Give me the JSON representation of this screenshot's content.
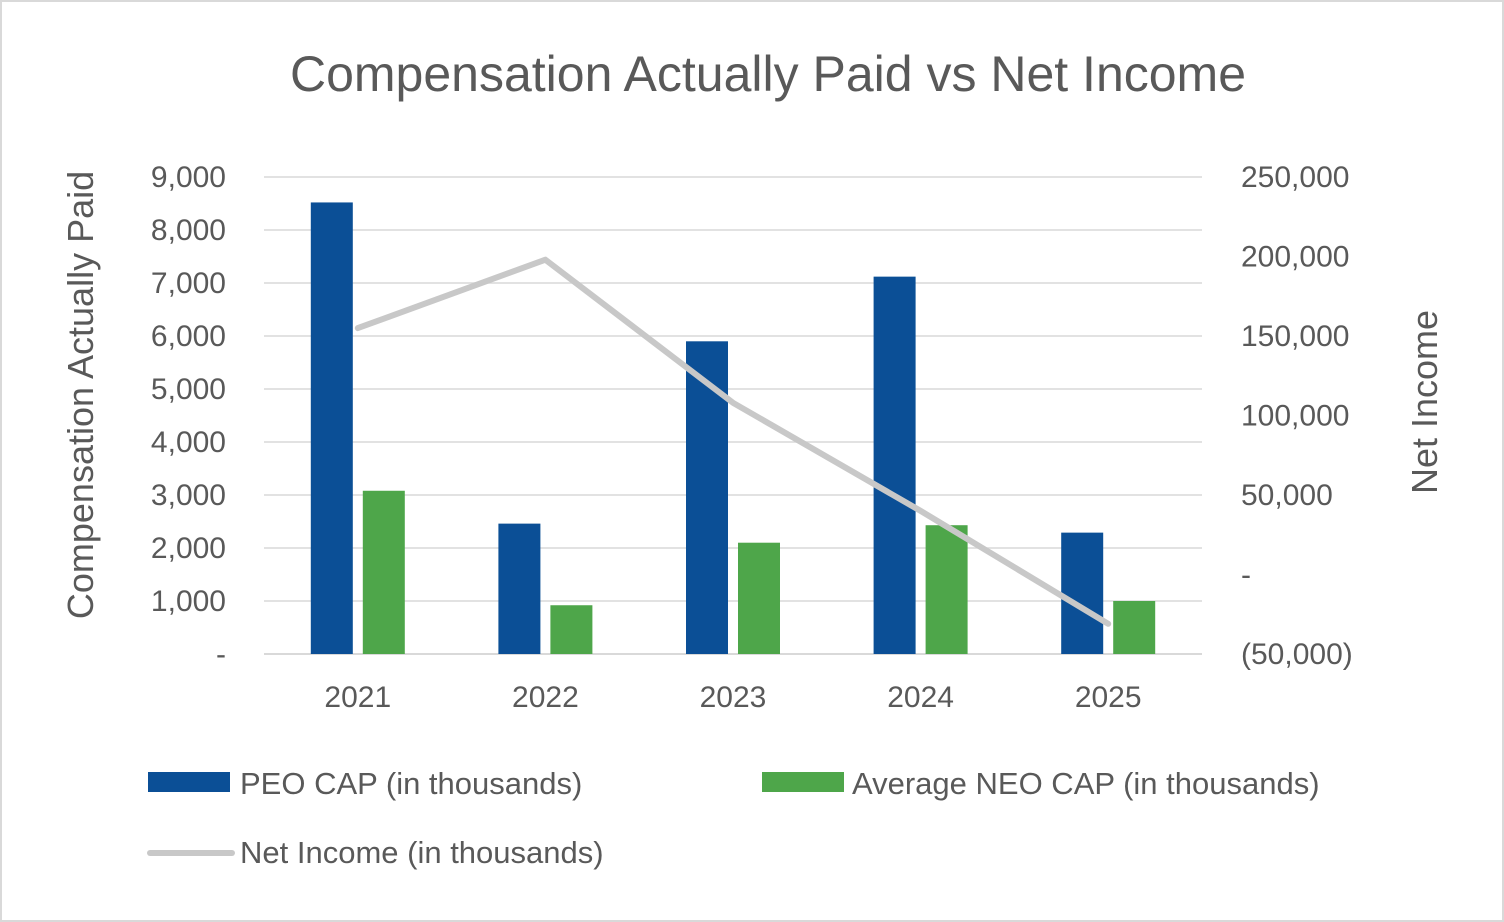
{
  "chart_data": {
    "type": "bar",
    "title": "Compensation Actually Paid vs Net Income",
    "categories": [
      "2021",
      "2022",
      "2023",
      "2024",
      "2025"
    ],
    "ylabel_left": "Compensation Actually Paid",
    "ylabel_right": "Net Income",
    "ylim_left": [
      0,
      9000
    ],
    "ylim_right": [
      -50000,
      250000
    ],
    "left_ticks": [
      "-",
      "1,000",
      "2,000",
      "3,000",
      "4,000",
      "5,000",
      "6,000",
      "7,000",
      "8,000",
      "9,000"
    ],
    "right_ticks": [
      "(50,000)",
      "-",
      "50,000",
      "100,000",
      "150,000",
      "200,000",
      "250,000"
    ],
    "series": [
      {
        "name": "PEO CAP (in thousands)",
        "type": "bar",
        "axis": "left",
        "color": "#0b4f96",
        "values": [
          8520,
          2460,
          5900,
          7120,
          2290
        ]
      },
      {
        "name": "Average NEO CAP (in thousands)",
        "type": "bar",
        "axis": "left",
        "color": "#4ea64a",
        "values": [
          3080,
          920,
          2100,
          2430,
          1000
        ]
      },
      {
        "name": "Net Income (in thousands)",
        "type": "line",
        "axis": "right",
        "color": "#c8c8c8",
        "values": [
          155000,
          198000,
          108000,
          40000,
          -31000
        ]
      }
    ],
    "grid": true,
    "legend": "bottom"
  }
}
